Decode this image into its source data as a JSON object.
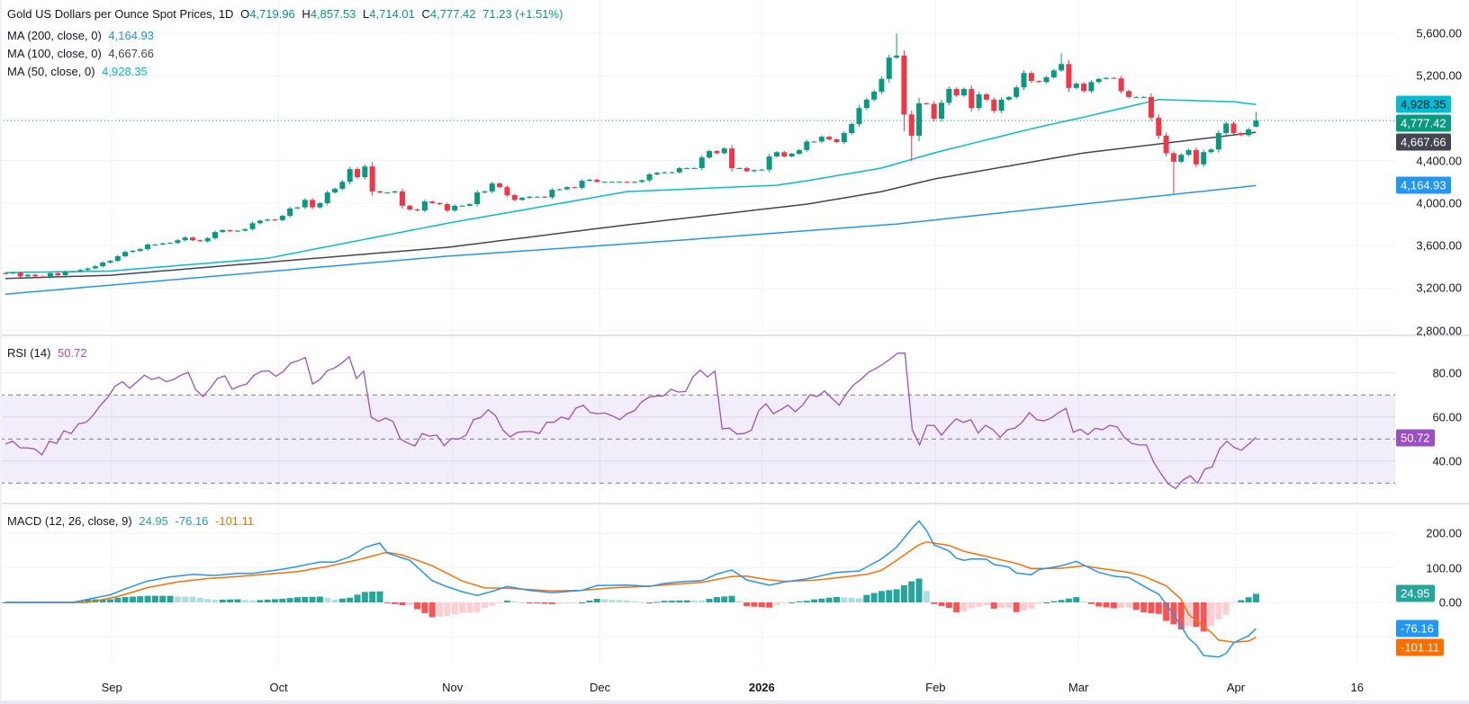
{
  "header": {
    "symbol_title": "Gold US Dollars per Ounce Spot Prices, 1D",
    "open_label": "O",
    "open": "4,719.96",
    "high_label": "H",
    "high": "4,857.53",
    "low_label": "L",
    "low": "4,714.01",
    "close_label": "C",
    "close": "4,777.42",
    "change": "71.23 (+1.51%)"
  },
  "indicators": {
    "ma200": {
      "label": "MA (200, close, 0)",
      "value": "4,164.93"
    },
    "ma100": {
      "label": "MA (100, close, 0)",
      "value": "4,667.66"
    },
    "ma50": {
      "label": "MA (50, close, 0)",
      "value": "4,928.35"
    },
    "rsi": {
      "label": "RSI (14)",
      "value": "50.72"
    },
    "macd": {
      "label": "MACD (12, 26, close, 9)",
      "hist": "24.95",
      "macd": "-76.16",
      "signal": "-101.11"
    }
  },
  "colors": {
    "up": "#089981",
    "down": "#f23645",
    "ma200": "#2196f3",
    "ma100": "#434651",
    "ma50": "#00bcd4",
    "rsi": "#9c4fc4",
    "macd": "#2196f3",
    "signal": "#ff6d00",
    "hist_up_strong": "#26a69a",
    "hist_up_weak": "#b2dfdb",
    "hist_down_strong": "#ff5252",
    "hist_down_weak": "#ffcdd2"
  },
  "chart_data": [
    {
      "type": "candlestick",
      "title": "Gold US Dollars per Ounce Spot Prices, 1D",
      "ylim": [
        2800,
        5600
      ],
      "y_ticks": [
        "5,600.00",
        "5,200.00",
        "4,400.00",
        "4,000.00",
        "3,600.00",
        "3,200.00",
        "2,800.00"
      ],
      "y_tick_values": [
        5600,
        5200,
        4400,
        4000,
        3600,
        3200,
        2800
      ],
      "x_ticks": [
        {
          "label": "Sep",
          "bar": 14.2
        },
        {
          "label": "Oct",
          "bar": 36.5
        },
        {
          "label": "Nov",
          "bar": 59.7
        },
        {
          "label": "Dec",
          "bar": 79.4
        },
        {
          "label": "2026",
          "bar": 101,
          "bold": true
        },
        {
          "label": "Feb",
          "bar": 124.2
        },
        {
          "label": "Mar",
          "bar": 143.3
        },
        {
          "label": "Apr",
          "bar": 164.3
        },
        {
          "label": "16",
          "bar": 180.5
        }
      ],
      "first_open": 3340,
      "closes": [
        3338,
        3345,
        3310,
        3325,
        3310,
        3300,
        3340,
        3320,
        3355,
        3355,
        3370,
        3385,
        3405,
        3440,
        3456,
        3500,
        3540,
        3550,
        3566,
        3610,
        3610,
        3620,
        3625,
        3650,
        3676,
        3650,
        3640,
        3670,
        3727,
        3745,
        3735,
        3740,
        3755,
        3810,
        3835,
        3845,
        3840,
        3880,
        3950,
        3960,
        4030,
        3960,
        4000,
        4100,
        4135,
        4200,
        4320,
        4245,
        4345,
        4110,
        4100,
        4100,
        4110,
        3975,
        3940,
        3930,
        4015,
        4000,
        3990,
        3930,
        3975,
        3975,
        3990,
        4100,
        4110,
        4185,
        4150,
        4075,
        4030,
        4050,
        4060,
        4060,
        4055,
        4125,
        4130,
        4150,
        4145,
        4210,
        4220,
        4200,
        4200,
        4200,
        4200,
        4195,
        4200,
        4215,
        4270,
        4285,
        4290,
        4290,
        4330,
        4330,
        4330,
        4430,
        4490,
        4470,
        4515,
        4330,
        4330,
        4300,
        4310,
        4315,
        4440,
        4480,
        4440,
        4465,
        4500,
        4580,
        4580,
        4625,
        4600,
        4575,
        4660,
        4745,
        4895,
        4975,
        5050,
        5170,
        5370,
        5390,
        4835,
        4635,
        4940,
        4935,
        4795,
        4945,
        5075,
        5015,
        5075,
        4895,
        5025,
        4975,
        4870,
        4975,
        5000,
        5090,
        5225,
        5150,
        5140,
        5185,
        5250,
        5310,
        5085,
        5125,
        5055,
        5140,
        5170,
        5180,
        5175,
        5055,
        5000,
        5000,
        5000,
        4805,
        4635,
        4470,
        4390,
        4455,
        4500,
        4365,
        4480,
        4505,
        4660,
        4750,
        4660,
        4640,
        4695,
        4777.42
      ],
      "ohlc_overrides": {
        "118": {
          "h": 5400
        },
        "119": {
          "h": 5598
        },
        "120": {
          "h": 5440,
          "l": 4675
        },
        "121": {
          "l": 4395
        },
        "141": {
          "h": 5410
        },
        "156": {
          "l": 4090
        },
        "167": {
          "o": 4719.96,
          "h": 4857.53,
          "l": 4714.01
        }
      },
      "last_price": 4777.42,
      "moving_averages": [
        {
          "name": "MA 200",
          "color_key": "ma200",
          "points": [
            [
              0,
              3142
            ],
            [
              59,
              3500
            ],
            [
              90,
              3650
            ],
            [
              119,
              3803
            ],
            [
              167,
              4164.93
            ]
          ]
        },
        {
          "name": "MA 100",
          "color_key": "ma100",
          "points": [
            [
              0,
              3290
            ],
            [
              14,
              3320
            ],
            [
              59,
              3583
            ],
            [
              83,
              3795
            ],
            [
              107,
              3990
            ],
            [
              117,
              4108
            ],
            [
              124,
              4227
            ],
            [
              144,
              4473
            ],
            [
              167,
              4667.66
            ]
          ]
        },
        {
          "name": "MA 50",
          "color_key": "ma50",
          "points": [
            [
              0,
              3345
            ],
            [
              14,
              3360
            ],
            [
              35,
              3480
            ],
            [
              59,
              3810
            ],
            [
              83,
              4108
            ],
            [
              103,
              4168
            ],
            [
              107,
              4210
            ],
            [
              117,
              4330
            ],
            [
              124,
              4473
            ],
            [
              137,
              4700
            ],
            [
              144,
              4810
            ],
            [
              154,
              4975
            ],
            [
              164,
              4955
            ],
            [
              167,
              4928.35
            ]
          ]
        }
      ],
      "price_badges": [
        {
          "text": "4,928.35",
          "value": 4928.35,
          "bg": "#00bcd4",
          "fg": "#131722"
        },
        {
          "text": "4,777.42",
          "value": 4777.42,
          "bg": "#089981",
          "fg": "#ffffff"
        },
        {
          "text": "4,667.66",
          "value": 4667.66,
          "bg": "#434651",
          "fg": "#ffffff"
        },
        {
          "text": "4,164.93",
          "value": 4164.93,
          "bg": "#2196f3",
          "fg": "#ffffff"
        }
      ]
    },
    {
      "type": "line",
      "title": "RSI (14)",
      "ylim": [
        25,
        95
      ],
      "y_ticks": [
        "80.00",
        "60.00",
        "40.00"
      ],
      "y_tick_values": [
        80,
        60,
        40
      ],
      "band": [
        30,
        70
      ],
      "midline": 50,
      "values": [
        47.7,
        49,
        46,
        46,
        45.5,
        42.8,
        49,
        48,
        53.8,
        52.5,
        57,
        57.5,
        60.8,
        65.3,
        69,
        74,
        76,
        73,
        76,
        79,
        77,
        78,
        76,
        77,
        79,
        80.3,
        72.5,
        69.3,
        73,
        77.5,
        78.7,
        72.6,
        74,
        75,
        79,
        80.7,
        81,
        78.5,
        80.7,
        84.5,
        85.5,
        87,
        75,
        77,
        81,
        82.3,
        84.5,
        87.4,
        77.5,
        80.8,
        60,
        58,
        59.5,
        58,
        50,
        48.2,
        46.8,
        52.5,
        51.3,
        51.8,
        47,
        50.2,
        50,
        51.8,
        58.8,
        59.8,
        63.3,
        60.7,
        54.2,
        51,
        53,
        53.4,
        53.4,
        52.5,
        57.6,
        57.6,
        60,
        59,
        64,
        65.3,
        62,
        61.5,
        61.8,
        60.5,
        58.8,
        61.5,
        62.8,
        66.9,
        69,
        69.6,
        69.6,
        72.6,
        71.3,
        71.6,
        78.2,
        81.3,
        78.2,
        80.8,
        54.6,
        55,
        52.3,
        52.5,
        54,
        62.9,
        66,
        61.5,
        63.3,
        65.4,
        62.4,
        65.4,
        70.1,
        69.3,
        71.8,
        68.5,
        65.4,
        70.6,
        74.6,
        77.2,
        80.3,
        82,
        84,
        86.4,
        89,
        89,
        54.2,
        47.3,
        56.2,
        56.2,
        51.8,
        55.8,
        59.2,
        57.5,
        58.8,
        52.7,
        56.2,
        54.4,
        50.7,
        54.2,
        54.9,
        57.5,
        62,
        58.8,
        58.2,
        59.6,
        62,
        63.9,
        53.1,
        54.4,
        52,
        54.9,
        54.2,
        56.2,
        55.5,
        50.7,
        48,
        47.3,
        47.3,
        39.5,
        34.3,
        29.6,
        27.5,
        31.4,
        33.3,
        30,
        36.4,
        37.3,
        45.5,
        49,
        46.2,
        44.9,
        47.7,
        50.72
      ],
      "badge": {
        "text": "50.72",
        "value": 50.72,
        "bg": "#9c4fc4",
        "fg": "#ffffff"
      }
    },
    {
      "type": "line+histogram",
      "title": "MACD (12, 26, close, 9)",
      "y_ticks": [
        "200.00",
        "100.00",
        "0.00"
      ],
      "y_tick_values": [
        200,
        100,
        0
      ],
      "grid_values": [
        200,
        100,
        0,
        -100
      ],
      "macd_points": [
        [
          0,
          0
        ],
        [
          9,
          0
        ],
        [
          14,
          22
        ],
        [
          16,
          39
        ],
        [
          19,
          62
        ],
        [
          22,
          74
        ],
        [
          25,
          81
        ],
        [
          28,
          78
        ],
        [
          31,
          84
        ],
        [
          33,
          84
        ],
        [
          37,
          96
        ],
        [
          39,
          104
        ],
        [
          42,
          117
        ],
        [
          44,
          117
        ],
        [
          46,
          132
        ],
        [
          48,
          159
        ],
        [
          50,
          172
        ],
        [
          51,
          143
        ],
        [
          54,
          122
        ],
        [
          57,
          63
        ],
        [
          59,
          45
        ],
        [
          61,
          31
        ],
        [
          63,
          20
        ],
        [
          65,
          32
        ],
        [
          67,
          46
        ],
        [
          70,
          35
        ],
        [
          73,
          28
        ],
        [
          77,
          35
        ],
        [
          79,
          49
        ],
        [
          83,
          50
        ],
        [
          86,
          46
        ],
        [
          88,
          55
        ],
        [
          91,
          61
        ],
        [
          93,
          63
        ],
        [
          95,
          82
        ],
        [
          97,
          94
        ],
        [
          99,
          65
        ],
        [
          102,
          50
        ],
        [
          104,
          59
        ],
        [
          107,
          68
        ],
        [
          111,
          87
        ],
        [
          114,
          91
        ],
        [
          117,
          126
        ],
        [
          119,
          160
        ],
        [
          121,
          213
        ],
        [
          122,
          236
        ],
        [
          123,
          208
        ],
        [
          124,
          167
        ],
        [
          126,
          149
        ],
        [
          127,
          128
        ],
        [
          128,
          122
        ],
        [
          129,
          126
        ],
        [
          131,
          125
        ],
        [
          132,
          110
        ],
        [
          134,
          102
        ],
        [
          135,
          85
        ],
        [
          137,
          80
        ],
        [
          138,
          95
        ],
        [
          141,
          106
        ],
        [
          143,
          119
        ],
        [
          146,
          87
        ],
        [
          148,
          76
        ],
        [
          150,
          72
        ],
        [
          153,
          35
        ],
        [
          154,
          24
        ],
        [
          156,
          -35
        ],
        [
          158,
          -104
        ],
        [
          159,
          -123
        ],
        [
          160,
          -154
        ],
        [
          162,
          -158
        ],
        [
          163,
          -148
        ],
        [
          164,
          -117
        ],
        [
          166,
          -97
        ],
        [
          167,
          -76.16
        ]
      ],
      "signal_points": [
        [
          0,
          0
        ],
        [
          11,
          0
        ],
        [
          15,
          17
        ],
        [
          19,
          43
        ],
        [
          23,
          59
        ],
        [
          27,
          69
        ],
        [
          31,
          75
        ],
        [
          35,
          82
        ],
        [
          39,
          89
        ],
        [
          43,
          104
        ],
        [
          47,
          123
        ],
        [
          50,
          140
        ],
        [
          51,
          145
        ],
        [
          53,
          137
        ],
        [
          55,
          122
        ],
        [
          57,
          106
        ],
        [
          61,
          62
        ],
        [
          64,
          42
        ],
        [
          67,
          41
        ],
        [
          73,
          33
        ],
        [
          77,
          35
        ],
        [
          81,
          42
        ],
        [
          85,
          46
        ],
        [
          93,
          58
        ],
        [
          97,
          75
        ],
        [
          99,
          76
        ],
        [
          102,
          65
        ],
        [
          104,
          61
        ],
        [
          108,
          64
        ],
        [
          115,
          81
        ],
        [
          117,
          93
        ],
        [
          119,
          122
        ],
        [
          122,
          167
        ],
        [
          123,
          175
        ],
        [
          126,
          165
        ],
        [
          128,
          148
        ],
        [
          131,
          133
        ],
        [
          135,
          113
        ],
        [
          137,
          98
        ],
        [
          141,
          99
        ],
        [
          144,
          106
        ],
        [
          146,
          99
        ],
        [
          150,
          87
        ],
        [
          152,
          76
        ],
        [
          155,
          48
        ],
        [
          157,
          9
        ],
        [
          158,
          -35
        ],
        [
          161,
          -87
        ],
        [
          162,
          -109
        ],
        [
          164,
          -115
        ],
        [
          166,
          -112
        ],
        [
          167,
          -101.11
        ]
      ],
      "badges": [
        {
          "text": "24.95",
          "value": 24.95,
          "bg": "#26a69a",
          "fg": "#ffffff"
        },
        {
          "text": "-76.16",
          "value": -76.16,
          "bg": "#2196f3",
          "fg": "#ffffff"
        },
        {
          "text": "-101.11",
          "value": -101.11,
          "bg": "#ff6d00",
          "fg": "#ffffff"
        }
      ]
    }
  ]
}
